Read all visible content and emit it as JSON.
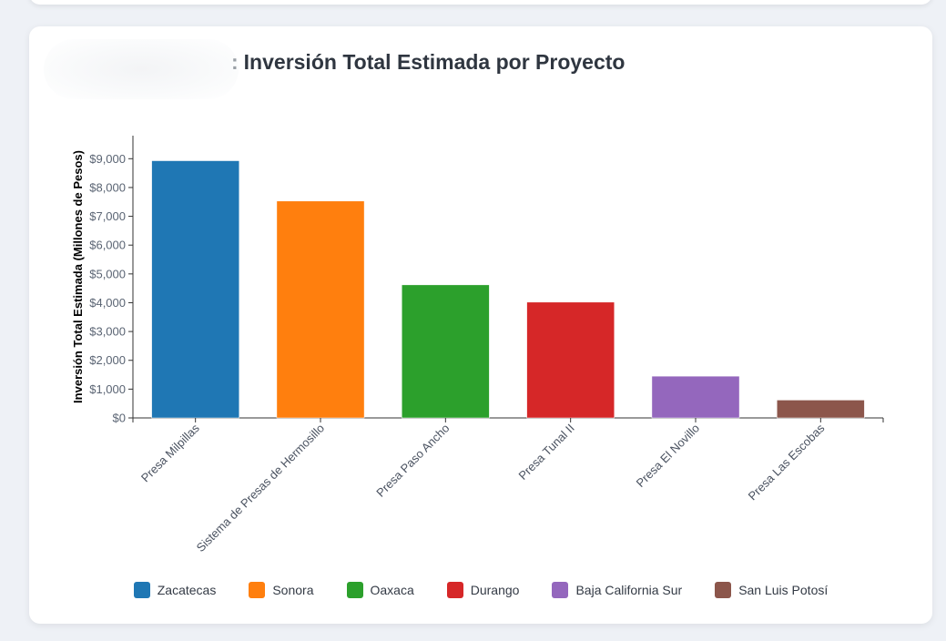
{
  "chart_data": {
    "type": "bar",
    "title": "Inversión Total Estimada por Proyecto",
    "title_lead": ":",
    "ylabel": "Inversión Total Estimada (Millones de Pesos)",
    "xlabel": "",
    "ylim": [
      0,
      9800
    ],
    "yticks": [
      0,
      1000,
      2000,
      3000,
      4000,
      5000,
      6000,
      7000,
      8000,
      9000
    ],
    "ytick_labels": [
      "$0",
      "$1,000",
      "$2,000",
      "$3,000",
      "$4,000",
      "$5,000",
      "$6,000",
      "$7,000",
      "$8,000",
      "$9,000"
    ],
    "categories": [
      "Presa Milpillas",
      "Sistema de Presas de Hermosillo",
      "Presa Paso Ancho",
      "Presa Tunal II",
      "Presa El Novillo",
      "Presa Las Escobas"
    ],
    "values": [
      8930,
      7530,
      4620,
      4020,
      1450,
      620
    ],
    "bar_states": [
      "Zacatecas",
      "Sonora",
      "Oaxaca",
      "Durango",
      "Baja California Sur",
      "San Luis Potosí"
    ],
    "legend_position": "bottom",
    "grid": false
  },
  "legend": [
    {
      "label": "Zacatecas",
      "color": "#1f77b4"
    },
    {
      "label": "Sonora",
      "color": "#ff7f0e"
    },
    {
      "label": "Oaxaca",
      "color": "#2ca02c"
    },
    {
      "label": "Durango",
      "color": "#d62728"
    },
    {
      "label": "Baja California Sur",
      "color": "#9467bd"
    },
    {
      "label": "San Luis Potosí",
      "color": "#8c564b"
    }
  ]
}
